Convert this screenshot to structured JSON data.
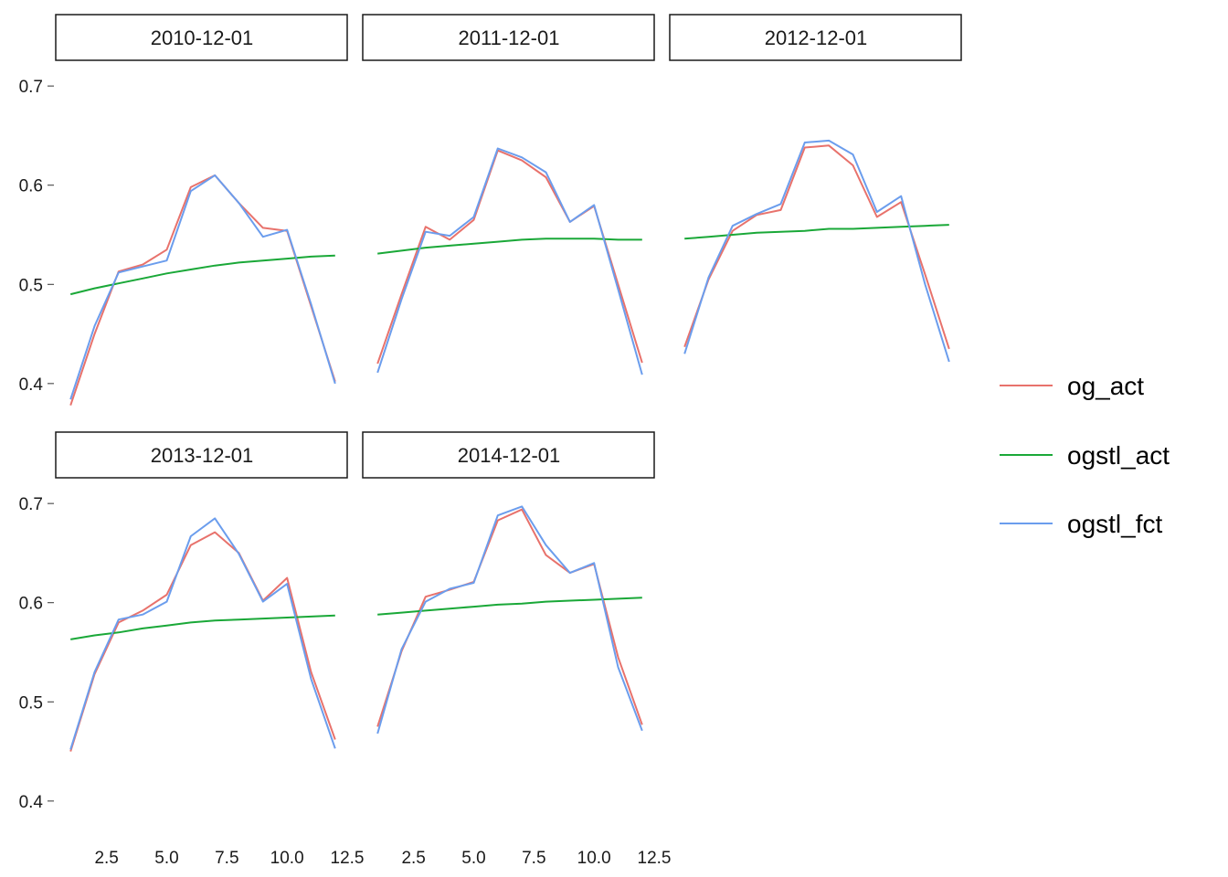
{
  "chart_data": {
    "type": "line",
    "facet_layout": "facet_wrap, 3 columns, shared axes",
    "xlim": [
      0.5,
      12.5
    ],
    "ylim": [
      0.375,
      0.725
    ],
    "x_ticks": [
      2.5,
      5.0,
      7.5,
      10.0,
      12.5
    ],
    "x_tick_labels": [
      "2.5",
      "5.0",
      "7.5",
      "10.0",
      "12.5"
    ],
    "y_ticks": [
      0.4,
      0.5,
      0.6,
      0.7
    ],
    "y_tick_labels": [
      "0.4",
      "0.5",
      "0.6",
      "0.7"
    ],
    "grid": false,
    "legend_position": "right",
    "series_order": [
      "og_act",
      "ogstl_act",
      "ogstl_fct"
    ],
    "series_colors": {
      "og_act": "#e8726c",
      "ogstl_act": "#1aa838",
      "ogstl_fct": "#6b9ded"
    },
    "x": [
      1,
      2,
      3,
      4,
      5,
      6,
      7,
      8,
      9,
      10,
      11,
      12
    ],
    "panels": [
      {
        "label": "2010-12-01",
        "series": {
          "og_act": [
            0.378,
            0.45,
            0.513,
            0.52,
            0.535,
            0.598,
            0.61,
            0.582,
            0.557,
            0.554,
            0.478,
            0.402
          ],
          "ogstl_act": [
            0.49,
            0.496,
            0.501,
            0.506,
            0.511,
            0.515,
            0.519,
            0.522,
            0.524,
            0.526,
            0.528,
            0.529
          ],
          "ogstl_fct": [
            0.384,
            0.458,
            0.512,
            0.518,
            0.524,
            0.594,
            0.61,
            0.582,
            0.548,
            0.555,
            0.48,
            0.4
          ]
        }
      },
      {
        "label": "2011-12-01",
        "series": {
          "og_act": [
            0.42,
            0.49,
            0.558,
            0.545,
            0.565,
            0.635,
            0.625,
            0.608,
            0.563,
            0.579,
            0.5,
            0.421
          ],
          "ogstl_act": [
            0.531,
            0.534,
            0.537,
            0.539,
            0.541,
            0.543,
            0.545,
            0.546,
            0.546,
            0.546,
            0.545,
            0.545
          ],
          "ogstl_fct": [
            0.411,
            0.485,
            0.553,
            0.549,
            0.568,
            0.637,
            0.628,
            0.613,
            0.563,
            0.58,
            0.495,
            0.409
          ]
        }
      },
      {
        "label": "2012-12-01",
        "series": {
          "og_act": [
            0.437,
            0.505,
            0.554,
            0.57,
            0.575,
            0.638,
            0.64,
            0.62,
            0.568,
            0.583,
            0.51,
            0.435
          ],
          "ogstl_act": [
            0.546,
            0.548,
            0.55,
            0.552,
            0.553,
            0.554,
            0.556,
            0.556,
            0.557,
            0.558,
            0.559,
            0.56
          ],
          "ogstl_fct": [
            0.43,
            0.507,
            0.559,
            0.571,
            0.581,
            0.643,
            0.645,
            0.631,
            0.573,
            0.589,
            0.5,
            0.422
          ]
        }
      },
      {
        "label": "2013-12-01",
        "series": {
          "og_act": [
            0.45,
            0.528,
            0.58,
            0.592,
            0.608,
            0.658,
            0.671,
            0.65,
            0.602,
            0.625,
            0.53,
            0.462
          ],
          "ogstl_act": [
            0.563,
            0.567,
            0.57,
            0.574,
            0.577,
            0.58,
            0.582,
            0.583,
            0.584,
            0.585,
            0.586,
            0.587
          ],
          "ogstl_fct": [
            0.452,
            0.53,
            0.583,
            0.588,
            0.601,
            0.667,
            0.685,
            0.649,
            0.601,
            0.619,
            0.523,
            0.453
          ]
        }
      },
      {
        "label": "2014-12-01",
        "series": {
          "og_act": [
            0.475,
            0.551,
            0.606,
            0.613,
            0.621,
            0.683,
            0.694,
            0.648,
            0.63,
            0.639,
            0.545,
            0.477
          ],
          "ogstl_act": [
            0.588,
            0.59,
            0.592,
            0.594,
            0.596,
            0.598,
            0.599,
            0.601,
            0.602,
            0.603,
            0.604,
            0.605
          ],
          "ogstl_fct": [
            0.468,
            0.553,
            0.601,
            0.614,
            0.62,
            0.688,
            0.697,
            0.658,
            0.63,
            0.64,
            0.535,
            0.471
          ]
        }
      }
    ],
    "legend": [
      {
        "name": "og_act",
        "color": "#e8726c"
      },
      {
        "name": "ogstl_act",
        "color": "#1aa838"
      },
      {
        "name": "ogstl_fct",
        "color": "#6b9ded"
      }
    ]
  }
}
